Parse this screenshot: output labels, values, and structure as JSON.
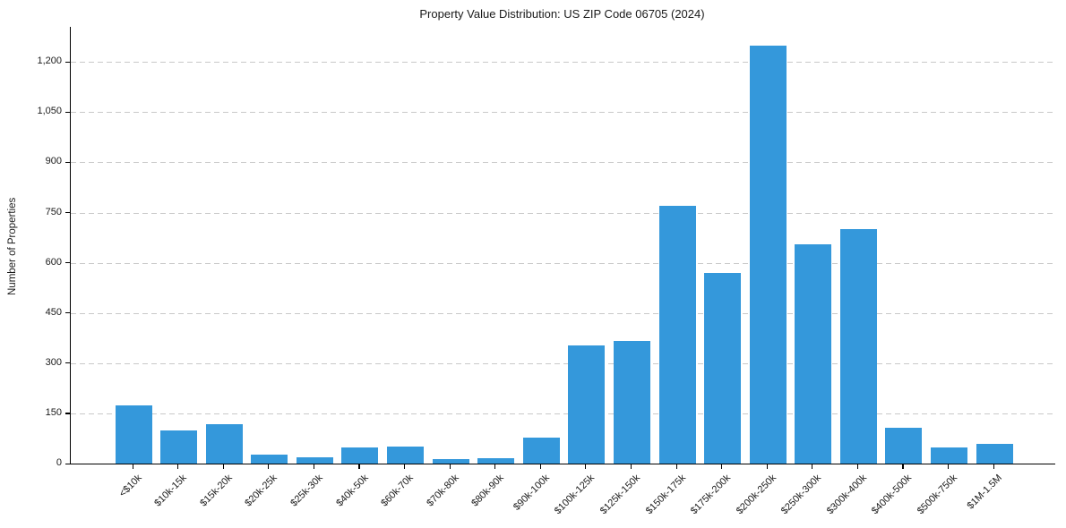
{
  "chart_data": {
    "type": "bar",
    "title": "Property Value Distribution: US ZIP Code 06705 (2024)",
    "xlabel": "",
    "ylabel": "Number of Properties",
    "categories": [
      "<$10k",
      "$10k-15k",
      "$15k-20k",
      "$20k-25k",
      "$25k-30k",
      "$40k-50k",
      "$60k-70k",
      "$70k-80k",
      "$80k-90k",
      "$90k-100k",
      "$100k-125k",
      "$125k-150k",
      "$150k-175k",
      "$175k-200k",
      "$200k-250k",
      "$250k-300k",
      "$300k-400k",
      "$400k-500k",
      "$500k-750k",
      "$1M-1.5M"
    ],
    "values": [
      174,
      100,
      119,
      27,
      19,
      48,
      52,
      13,
      17,
      79,
      352,
      367,
      771,
      570,
      1248,
      656,
      701,
      106,
      47,
      59
    ],
    "yticks": [
      0,
      150,
      300,
      450,
      600,
      750,
      900,
      1050,
      1200
    ],
    "ylim": [
      0,
      1305
    ],
    "bar_color": "#3498db",
    "grid": true,
    "grid_style": "dashed",
    "legend_position": "none"
  }
}
